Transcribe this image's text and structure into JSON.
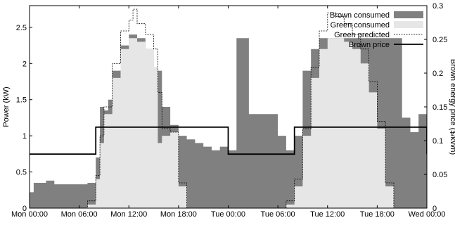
{
  "chart_data": {
    "type": "area",
    "ylabel": "Power (kW)",
    "y2label": "Brown energy price ($/kWh)",
    "xlim": [
      0,
      48
    ],
    "ylim": [
      0,
      2.8
    ],
    "y2lim": [
      0,
      0.3
    ],
    "x_ticks": [
      {
        "x": 0,
        "label": "Mon 00:00"
      },
      {
        "x": 6,
        "label": "Mon 06:00"
      },
      {
        "x": 12,
        "label": "Mon 12:00"
      },
      {
        "x": 18,
        "label": "Mon 18:00"
      },
      {
        "x": 24,
        "label": "Tue 00:00"
      },
      {
        "x": 30,
        "label": "Tue 06:00"
      },
      {
        "x": 36,
        "label": "Tue 12:00"
      },
      {
        "x": 42,
        "label": "Tue 18:00"
      },
      {
        "x": 48,
        "label": "Wed 00:00"
      }
    ],
    "y_ticks": [
      {
        "v": 0,
        "label": "0"
      },
      {
        "v": 0.5,
        "label": "0.5"
      },
      {
        "v": 1,
        "label": "1"
      },
      {
        "v": 1.5,
        "label": "1.5"
      },
      {
        "v": 2,
        "label": "2"
      },
      {
        "v": 2.5,
        "label": "2.5"
      }
    ],
    "y2_ticks": [
      {
        "v": 0,
        "label": "0"
      },
      {
        "v": 0.05,
        "label": "0.05"
      },
      {
        "v": 0.1,
        "label": "0.1"
      },
      {
        "v": 0.15,
        "label": "0.15"
      },
      {
        "v": 0.2,
        "label": "0.2"
      },
      {
        "v": 0.25,
        "label": "0.25"
      },
      {
        "v": 0.3,
        "label": "0.3"
      }
    ],
    "legend_position": "top-right",
    "series": [
      {
        "name": "Brown consumed",
        "kind": "area",
        "color": "#808080",
        "points": [
          [
            0,
            0.22
          ],
          [
            0.5,
            0.35
          ],
          [
            1,
            0.35
          ],
          [
            2,
            0.38
          ],
          [
            3,
            0.33
          ],
          [
            4,
            0.33
          ],
          [
            5,
            0.33
          ],
          [
            6,
            0.33
          ],
          [
            7,
            0.35
          ],
          [
            8,
            0.7
          ],
          [
            8.5,
            1.4
          ],
          [
            9,
            1.35
          ],
          [
            9.5,
            1.5
          ],
          [
            10,
            1.9
          ],
          [
            11,
            2.25
          ],
          [
            12,
            2.4
          ],
          [
            13,
            2.35
          ],
          [
            14,
            2.2
          ],
          [
            15,
            1.9
          ],
          [
            16,
            1.4
          ],
          [
            17,
            1.15
          ],
          [
            18,
            1.0
          ],
          [
            19,
            0.95
          ],
          [
            20,
            0.9
          ],
          [
            21,
            0.85
          ],
          [
            22,
            0.8
          ],
          [
            23,
            0.85
          ],
          [
            24,
            0.8
          ],
          [
            25,
            2.35
          ],
          [
            26,
            2.35
          ],
          [
            26.5,
            1.3
          ],
          [
            27,
            1.3
          ],
          [
            28,
            1.3
          ],
          [
            29,
            1.3
          ],
          [
            30,
            1.0
          ],
          [
            31,
            0.8
          ],
          [
            32,
            1.0
          ],
          [
            33,
            1.9
          ],
          [
            34,
            2.2
          ],
          [
            35,
            2.35
          ],
          [
            36,
            2.35
          ],
          [
            37,
            2.35
          ],
          [
            38,
            2.35
          ],
          [
            39,
            2.35
          ],
          [
            40,
            2.35
          ],
          [
            41,
            2.35
          ],
          [
            42,
            2.35
          ],
          [
            43,
            2.35
          ],
          [
            44,
            2.35
          ],
          [
            45,
            1.25
          ],
          [
            46,
            1.05
          ],
          [
            47,
            1.3
          ],
          [
            48,
            1.3
          ]
        ]
      },
      {
        "name": "Green consumed",
        "kind": "area",
        "color": "#e6e6e6",
        "points": [
          [
            0,
            0
          ],
          [
            6,
            0
          ],
          [
            7,
            0.05
          ],
          [
            8,
            0.4
          ],
          [
            8.5,
            0.9
          ],
          [
            9,
            1.3
          ],
          [
            10,
            1.8
          ],
          [
            11,
            2.2
          ],
          [
            12,
            2.35
          ],
          [
            13,
            2.3
          ],
          [
            14,
            2.2
          ],
          [
            15,
            1.95
          ],
          [
            15.5,
            0.9
          ],
          [
            16,
            1.0
          ],
          [
            17,
            1.05
          ],
          [
            18,
            0.3
          ],
          [
            19,
            0
          ],
          [
            24,
            0
          ],
          [
            30,
            0
          ],
          [
            31,
            0.05
          ],
          [
            32,
            0.3
          ],
          [
            33,
            1.0
          ],
          [
            34,
            1.8
          ],
          [
            35,
            2.2
          ],
          [
            36,
            2.35
          ],
          [
            37,
            2.35
          ],
          [
            38,
            2.3
          ],
          [
            39,
            2.2
          ],
          [
            40,
            2.0
          ],
          [
            41,
            1.6
          ],
          [
            42,
            1.1
          ],
          [
            43,
            0.3
          ],
          [
            44,
            0
          ],
          [
            48,
            0
          ]
        ]
      },
      {
        "name": "Green predicted",
        "kind": "line",
        "dashed": true,
        "color": "#000000",
        "points": [
          [
            0,
            0
          ],
          [
            6,
            0
          ],
          [
            7,
            0.1
          ],
          [
            8,
            0.45
          ],
          [
            8.5,
            1.0
          ],
          [
            9,
            1.4
          ],
          [
            10,
            2.0
          ],
          [
            11,
            2.45
          ],
          [
            12,
            2.6
          ],
          [
            12.5,
            2.75
          ],
          [
            13,
            2.55
          ],
          [
            14,
            2.4
          ],
          [
            15,
            2.2
          ],
          [
            15.5,
            1.6
          ],
          [
            16,
            1.1
          ],
          [
            17,
            1.05
          ],
          [
            18,
            0.35
          ],
          [
            19,
            0
          ],
          [
            24,
            0
          ],
          [
            30,
            0
          ],
          [
            31,
            0.1
          ],
          [
            32,
            0.4
          ],
          [
            33,
            1.1
          ],
          [
            34,
            1.95
          ],
          [
            35,
            2.45
          ],
          [
            36,
            2.7
          ],
          [
            37,
            2.65
          ],
          [
            38,
            2.55
          ],
          [
            39,
            2.4
          ],
          [
            40,
            2.2
          ],
          [
            41,
            1.75
          ],
          [
            42,
            1.2
          ],
          [
            43,
            0.35
          ],
          [
            44,
            0
          ],
          [
            48,
            0
          ]
        ]
      },
      {
        "name": "Brown price",
        "kind": "step",
        "axis": "y2",
        "color": "#000000",
        "points": [
          [
            0,
            0.08
          ],
          [
            8,
            0.08
          ],
          [
            8,
            0.12
          ],
          [
            24,
            0.12
          ],
          [
            24,
            0.08
          ],
          [
            32,
            0.08
          ],
          [
            32,
            0.12
          ],
          [
            48,
            0.12
          ],
          [
            48,
            0.08
          ]
        ]
      }
    ]
  }
}
